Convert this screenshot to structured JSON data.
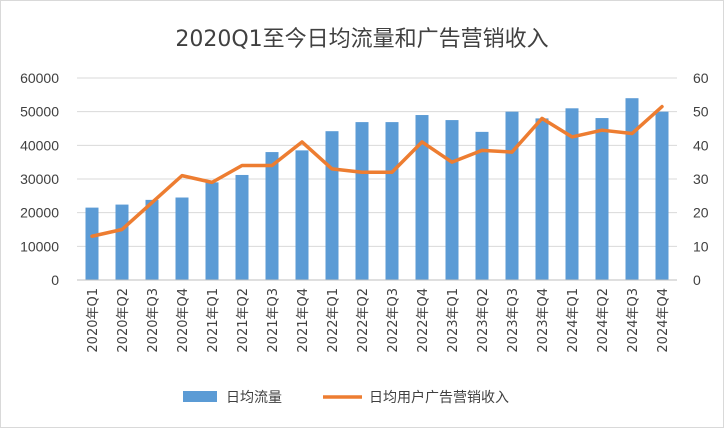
{
  "chart_data": {
    "type": "bar+line",
    "title": "2020Q1至今日均流量和广告营销收入",
    "categories": [
      "2020年Q1",
      "2020年Q2",
      "2020年Q3",
      "2020年Q4",
      "2021年Q1",
      "2021年Q2",
      "2021年Q3",
      "2021年Q4",
      "2022年Q1",
      "2022年Q2",
      "2022年Q3",
      "2022年Q4",
      "2023年Q1",
      "2023年Q2",
      "2023年Q3",
      "2023年Q4",
      "2024年Q1",
      "2024年Q2",
      "2024年Q3",
      "2024年Q4"
    ],
    "series": [
      {
        "name": "日均流量",
        "type": "bar",
        "axis": "left",
        "color": "#5b9bd5",
        "values": [
          21500,
          22400,
          23800,
          24500,
          29000,
          31200,
          38000,
          38500,
          44200,
          46900,
          46900,
          49000,
          47500,
          44000,
          50000,
          48000,
          51000,
          48100,
          54000,
          50000
        ]
      },
      {
        "name": "日均用户广告营销收入",
        "type": "line",
        "axis": "right",
        "color": "#ed7d31",
        "values": [
          13,
          15,
          23,
          31,
          29,
          34,
          34,
          41,
          33,
          32,
          32,
          41,
          35,
          38.5,
          38,
          48,
          42.5,
          44.5,
          43.5,
          51.5
        ]
      }
    ],
    "y_left": {
      "min": 0,
      "max": 60000,
      "ticks": [
        "0",
        "10000",
        "20000",
        "30000",
        "40000",
        "50000",
        "60000"
      ]
    },
    "y_right": {
      "min": 0,
      "max": 60,
      "ticks": [
        "0",
        "10",
        "20",
        "30",
        "40",
        "50",
        "60"
      ]
    },
    "grid": true,
    "legend_position": "bottom"
  }
}
